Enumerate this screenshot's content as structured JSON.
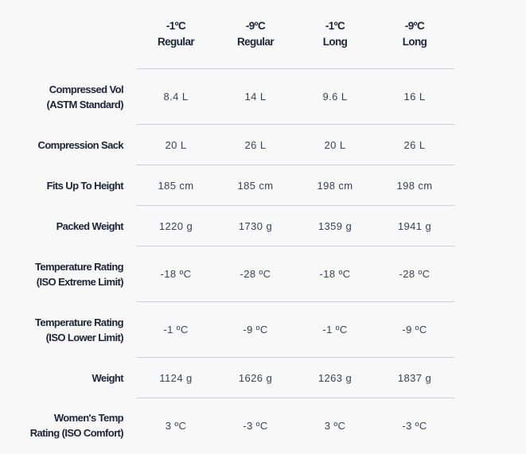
{
  "columns": [
    {
      "temp": "-1ºC",
      "size": "Regular"
    },
    {
      "temp": "-9ºC",
      "size": "Regular"
    },
    {
      "temp": "-1ºC",
      "size": "Long"
    },
    {
      "temp": "-9ºC",
      "size": "Long"
    }
  ],
  "rows": [
    {
      "label1": "Compressed Vol",
      "label2": "(ASTM Standard)",
      "values": [
        "8.4 L",
        "14 L",
        "9.6 L",
        "16 L"
      ]
    },
    {
      "label1": "Compression Sack",
      "label2": "",
      "values": [
        "20 L",
        "26 L",
        "20 L",
        "26 L"
      ]
    },
    {
      "label1": "Fits Up To Height",
      "label2": "",
      "values": [
        "185 cm",
        "185 cm",
        "198 cm",
        "198 cm"
      ]
    },
    {
      "label1": "Packed Weight",
      "label2": "",
      "values": [
        "1220 g",
        "1730 g",
        "1359 g",
        "1941 g"
      ]
    },
    {
      "label1": "Temperature Rating",
      "label2": "(ISO Extreme Limit)",
      "values": [
        "-18 ºC",
        "-28 ºC",
        "-18 ºC",
        "-28 ºC"
      ]
    },
    {
      "label1": "Temperature Rating",
      "label2": "(ISO Lower Limit)",
      "values": [
        "-1 ºC",
        "-9 ºC",
        "-1 ºC",
        "-9 ºC"
      ]
    },
    {
      "label1": "Weight",
      "label2": "",
      "values": [
        "1124 g",
        "1626 g",
        "1263 g",
        "1837 g"
      ]
    },
    {
      "label1": "Women's Temp",
      "label2": "Rating (ISO Comfort)",
      "values": [
        "3 ºC",
        "-3 ºC",
        "3 ºC",
        "-3 ºC"
      ]
    }
  ]
}
